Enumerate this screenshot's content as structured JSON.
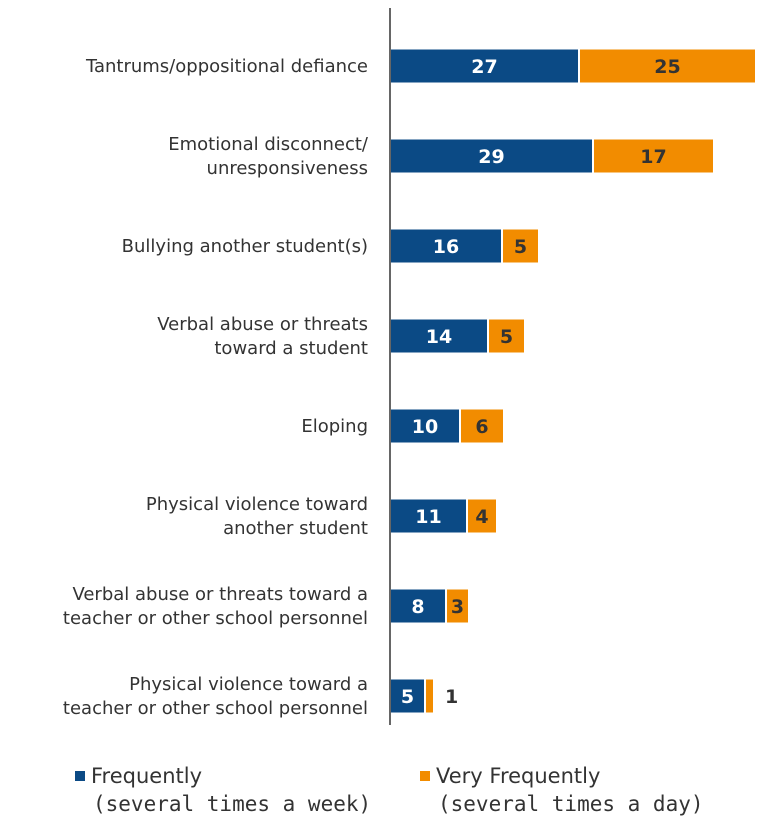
{
  "chart_data": {
    "type": "bar",
    "orientation": "horizontal",
    "stacked": true,
    "categories": [
      [
        "Tantrums/oppositional defiance"
      ],
      [
        "Emotional disconnect/",
        "unresponsiveness"
      ],
      [
        "Bullying another student(s)"
      ],
      [
        "Verbal abuse or threats",
        "toward a student"
      ],
      [
        "Eloping"
      ],
      [
        "Physical violence toward",
        "another student"
      ],
      [
        "Verbal abuse or threats toward a",
        "teacher or other school personnel"
      ],
      [
        "Physical violence toward a",
        "teacher or other school personnel"
      ]
    ],
    "series": [
      {
        "name": "Frequently (several times a week)",
        "color": "#0b4a85",
        "values": [
          27,
          29,
          16,
          14,
          10,
          11,
          8,
          5
        ]
      },
      {
        "name": "Very Frequently (several times a day)",
        "color": "#f28c00",
        "values": [
          25,
          17,
          5,
          5,
          6,
          4,
          3,
          1
        ]
      }
    ],
    "legend_position": "bottom",
    "grid": false,
    "xlim": [
      0,
      52
    ]
  },
  "legend": [
    {
      "line1": "Frequently",
      "line2": "(several times a week)",
      "color": "#0b4a85"
    },
    {
      "line1": "Very Frequently",
      "line2": "(several times a day)",
      "color": "#f28c00"
    }
  ]
}
